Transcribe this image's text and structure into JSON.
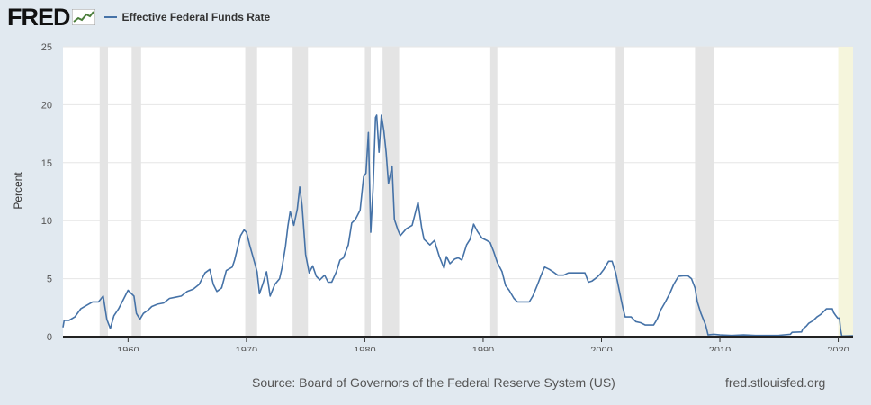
{
  "header": {
    "logo_text": "FRED",
    "legend_label": "Effective Federal Funds Rate"
  },
  "footer": {
    "source": "Source: Board of Governors of the Federal Reserve System (US)",
    "url": "fred.stlouisfed.org"
  },
  "colors": {
    "series": "#4572a7",
    "recession": "#e4e4e4",
    "forecast": "#f5f5dc",
    "background": "#e1e9f0"
  },
  "chart_data": {
    "type": "line",
    "title": "",
    "xlabel": "",
    "ylabel": "Percent",
    "xlim": [
      1954.5,
      2021.25
    ],
    "ylim": [
      0,
      25
    ],
    "yticks": [
      0,
      5,
      10,
      15,
      20,
      25
    ],
    "xticks": [
      1960,
      1970,
      1980,
      1990,
      2000,
      2010,
      2020
    ],
    "legend": "top-left",
    "recessions": [
      [
        1957.6,
        1958.3
      ],
      [
        1960.3,
        1961.1
      ],
      [
        1969.9,
        1970.9
      ],
      [
        1973.9,
        1975.2
      ],
      [
        1980.0,
        1980.5
      ],
      [
        1981.5,
        1982.9
      ],
      [
        1990.6,
        1991.2
      ],
      [
        2001.2,
        2001.9
      ],
      [
        2007.9,
        2009.5
      ],
      [
        2020.0,
        2021.25
      ]
    ],
    "shaded_highlight": [
      2020.0,
      2021.25
    ],
    "series": [
      {
        "name": "Effective Federal Funds Rate",
        "points": [
          [
            1954.5,
            0.8
          ],
          [
            1954.6,
            1.4
          ],
          [
            1955.0,
            1.4
          ],
          [
            1955.5,
            1.7
          ],
          [
            1956.0,
            2.4
          ],
          [
            1956.5,
            2.7
          ],
          [
            1957.0,
            3.0
          ],
          [
            1957.5,
            3.0
          ],
          [
            1957.9,
            3.5
          ],
          [
            1958.2,
            1.5
          ],
          [
            1958.5,
            0.7
          ],
          [
            1958.8,
            1.8
          ],
          [
            1959.2,
            2.4
          ],
          [
            1959.6,
            3.2
          ],
          [
            1960.0,
            4.0
          ],
          [
            1960.5,
            3.5
          ],
          [
            1960.7,
            2.0
          ],
          [
            1961.0,
            1.5
          ],
          [
            1961.3,
            2.0
          ],
          [
            1961.7,
            2.3
          ],
          [
            1962.0,
            2.6
          ],
          [
            1962.5,
            2.8
          ],
          [
            1963.0,
            2.9
          ],
          [
            1963.5,
            3.3
          ],
          [
            1964.0,
            3.4
          ],
          [
            1964.5,
            3.5
          ],
          [
            1965.0,
            3.9
          ],
          [
            1965.5,
            4.1
          ],
          [
            1966.0,
            4.5
          ],
          [
            1966.5,
            5.5
          ],
          [
            1966.9,
            5.8
          ],
          [
            1967.2,
            4.5
          ],
          [
            1967.5,
            3.9
          ],
          [
            1967.9,
            4.2
          ],
          [
            1968.3,
            5.7
          ],
          [
            1968.8,
            6.0
          ],
          [
            1969.0,
            6.6
          ],
          [
            1969.5,
            8.7
          ],
          [
            1969.8,
            9.2
          ],
          [
            1970.0,
            9.0
          ],
          [
            1970.3,
            7.8
          ],
          [
            1970.6,
            6.7
          ],
          [
            1970.9,
            5.6
          ],
          [
            1971.1,
            3.7
          ],
          [
            1971.4,
            4.6
          ],
          [
            1971.7,
            5.6
          ],
          [
            1972.0,
            3.5
          ],
          [
            1972.4,
            4.5
          ],
          [
            1972.8,
            5.0
          ],
          [
            1973.0,
            5.9
          ],
          [
            1973.3,
            7.8
          ],
          [
            1973.5,
            9.5
          ],
          [
            1973.7,
            10.8
          ],
          [
            1974.0,
            9.6
          ],
          [
            1974.3,
            11.0
          ],
          [
            1974.5,
            12.9
          ],
          [
            1974.7,
            11.3
          ],
          [
            1974.9,
            8.5
          ],
          [
            1975.0,
            7.1
          ],
          [
            1975.3,
            5.5
          ],
          [
            1975.6,
            6.1
          ],
          [
            1975.9,
            5.2
          ],
          [
            1976.2,
            4.9
          ],
          [
            1976.6,
            5.3
          ],
          [
            1976.9,
            4.7
          ],
          [
            1977.2,
            4.7
          ],
          [
            1977.6,
            5.6
          ],
          [
            1977.9,
            6.6
          ],
          [
            1978.2,
            6.8
          ],
          [
            1978.6,
            7.9
          ],
          [
            1978.9,
            9.8
          ],
          [
            1979.2,
            10.1
          ],
          [
            1979.6,
            10.9
          ],
          [
            1979.9,
            13.8
          ],
          [
            1980.1,
            14.1
          ],
          [
            1980.3,
            17.6
          ],
          [
            1980.5,
            9.0
          ],
          [
            1980.7,
            12.8
          ],
          [
            1980.9,
            18.9
          ],
          [
            1981.0,
            19.1
          ],
          [
            1981.2,
            15.9
          ],
          [
            1981.4,
            19.1
          ],
          [
            1981.6,
            17.8
          ],
          [
            1981.8,
            15.9
          ],
          [
            1982.0,
            13.2
          ],
          [
            1982.3,
            14.7
          ],
          [
            1982.5,
            10.1
          ],
          [
            1982.8,
            9.2
          ],
          [
            1983.0,
            8.7
          ],
          [
            1983.5,
            9.3
          ],
          [
            1984.0,
            9.6
          ],
          [
            1984.5,
            11.6
          ],
          [
            1984.8,
            9.4
          ],
          [
            1985.0,
            8.4
          ],
          [
            1985.5,
            7.9
          ],
          [
            1985.9,
            8.3
          ],
          [
            1986.0,
            7.9
          ],
          [
            1986.3,
            6.9
          ],
          [
            1986.7,
            5.9
          ],
          [
            1986.9,
            6.9
          ],
          [
            1987.2,
            6.3
          ],
          [
            1987.6,
            6.7
          ],
          [
            1987.9,
            6.8
          ],
          [
            1988.2,
            6.6
          ],
          [
            1988.6,
            7.9
          ],
          [
            1988.9,
            8.4
          ],
          [
            1989.2,
            9.7
          ],
          [
            1989.5,
            9.1
          ],
          [
            1989.9,
            8.5
          ],
          [
            1990.3,
            8.3
          ],
          [
            1990.6,
            8.1
          ],
          [
            1990.9,
            7.3
          ],
          [
            1991.2,
            6.4
          ],
          [
            1991.6,
            5.6
          ],
          [
            1991.9,
            4.4
          ],
          [
            1992.2,
            4.0
          ],
          [
            1992.6,
            3.3
          ],
          [
            1992.9,
            3.0
          ],
          [
            1993.4,
            3.0
          ],
          [
            1993.9,
            3.0
          ],
          [
            1994.2,
            3.5
          ],
          [
            1994.6,
            4.5
          ],
          [
            1994.9,
            5.3
          ],
          [
            1995.2,
            6.0
          ],
          [
            1995.6,
            5.8
          ],
          [
            1995.9,
            5.6
          ],
          [
            1996.3,
            5.3
          ],
          [
            1996.8,
            5.3
          ],
          [
            1997.2,
            5.5
          ],
          [
            1997.8,
            5.5
          ],
          [
            1998.2,
            5.5
          ],
          [
            1998.6,
            5.5
          ],
          [
            1998.9,
            4.7
          ],
          [
            1999.2,
            4.8
          ],
          [
            1999.6,
            5.1
          ],
          [
            1999.9,
            5.4
          ],
          [
            2000.2,
            5.8
          ],
          [
            2000.6,
            6.5
          ],
          [
            2000.9,
            6.5
          ],
          [
            2001.2,
            5.5
          ],
          [
            2001.5,
            4.0
          ],
          [
            2001.8,
            2.5
          ],
          [
            2002.0,
            1.7
          ],
          [
            2002.5,
            1.7
          ],
          [
            2002.9,
            1.3
          ],
          [
            2003.3,
            1.2
          ],
          [
            2003.7,
            1.0
          ],
          [
            2004.0,
            1.0
          ],
          [
            2004.4,
            1.0
          ],
          [
            2004.7,
            1.5
          ],
          [
            2005.0,
            2.3
          ],
          [
            2005.4,
            3.0
          ],
          [
            2005.8,
            3.8
          ],
          [
            2006.1,
            4.5
          ],
          [
            2006.5,
            5.2
          ],
          [
            2006.9,
            5.25
          ],
          [
            2007.3,
            5.25
          ],
          [
            2007.6,
            5.0
          ],
          [
            2007.9,
            4.2
          ],
          [
            2008.1,
            3.0
          ],
          [
            2008.4,
            2.0
          ],
          [
            2008.8,
            1.0
          ],
          [
            2009.0,
            0.15
          ],
          [
            2009.5,
            0.2
          ],
          [
            2010.0,
            0.15
          ],
          [
            2011.0,
            0.1
          ],
          [
            2012.0,
            0.15
          ],
          [
            2013.0,
            0.1
          ],
          [
            2014.0,
            0.1
          ],
          [
            2015.0,
            0.12
          ],
          [
            2015.95,
            0.2
          ],
          [
            2016.1,
            0.37
          ],
          [
            2016.9,
            0.4
          ],
          [
            2017.0,
            0.65
          ],
          [
            2017.3,
            0.9
          ],
          [
            2017.5,
            1.15
          ],
          [
            2017.9,
            1.4
          ],
          [
            2018.2,
            1.7
          ],
          [
            2018.5,
            1.9
          ],
          [
            2018.8,
            2.2
          ],
          [
            2019.0,
            2.4
          ],
          [
            2019.5,
            2.4
          ],
          [
            2019.6,
            2.1
          ],
          [
            2019.8,
            1.8
          ],
          [
            2019.95,
            1.6
          ],
          [
            2020.1,
            1.6
          ],
          [
            2020.2,
            0.6
          ],
          [
            2020.3,
            0.05
          ],
          [
            2021.25,
            0.08
          ]
        ]
      }
    ]
  }
}
